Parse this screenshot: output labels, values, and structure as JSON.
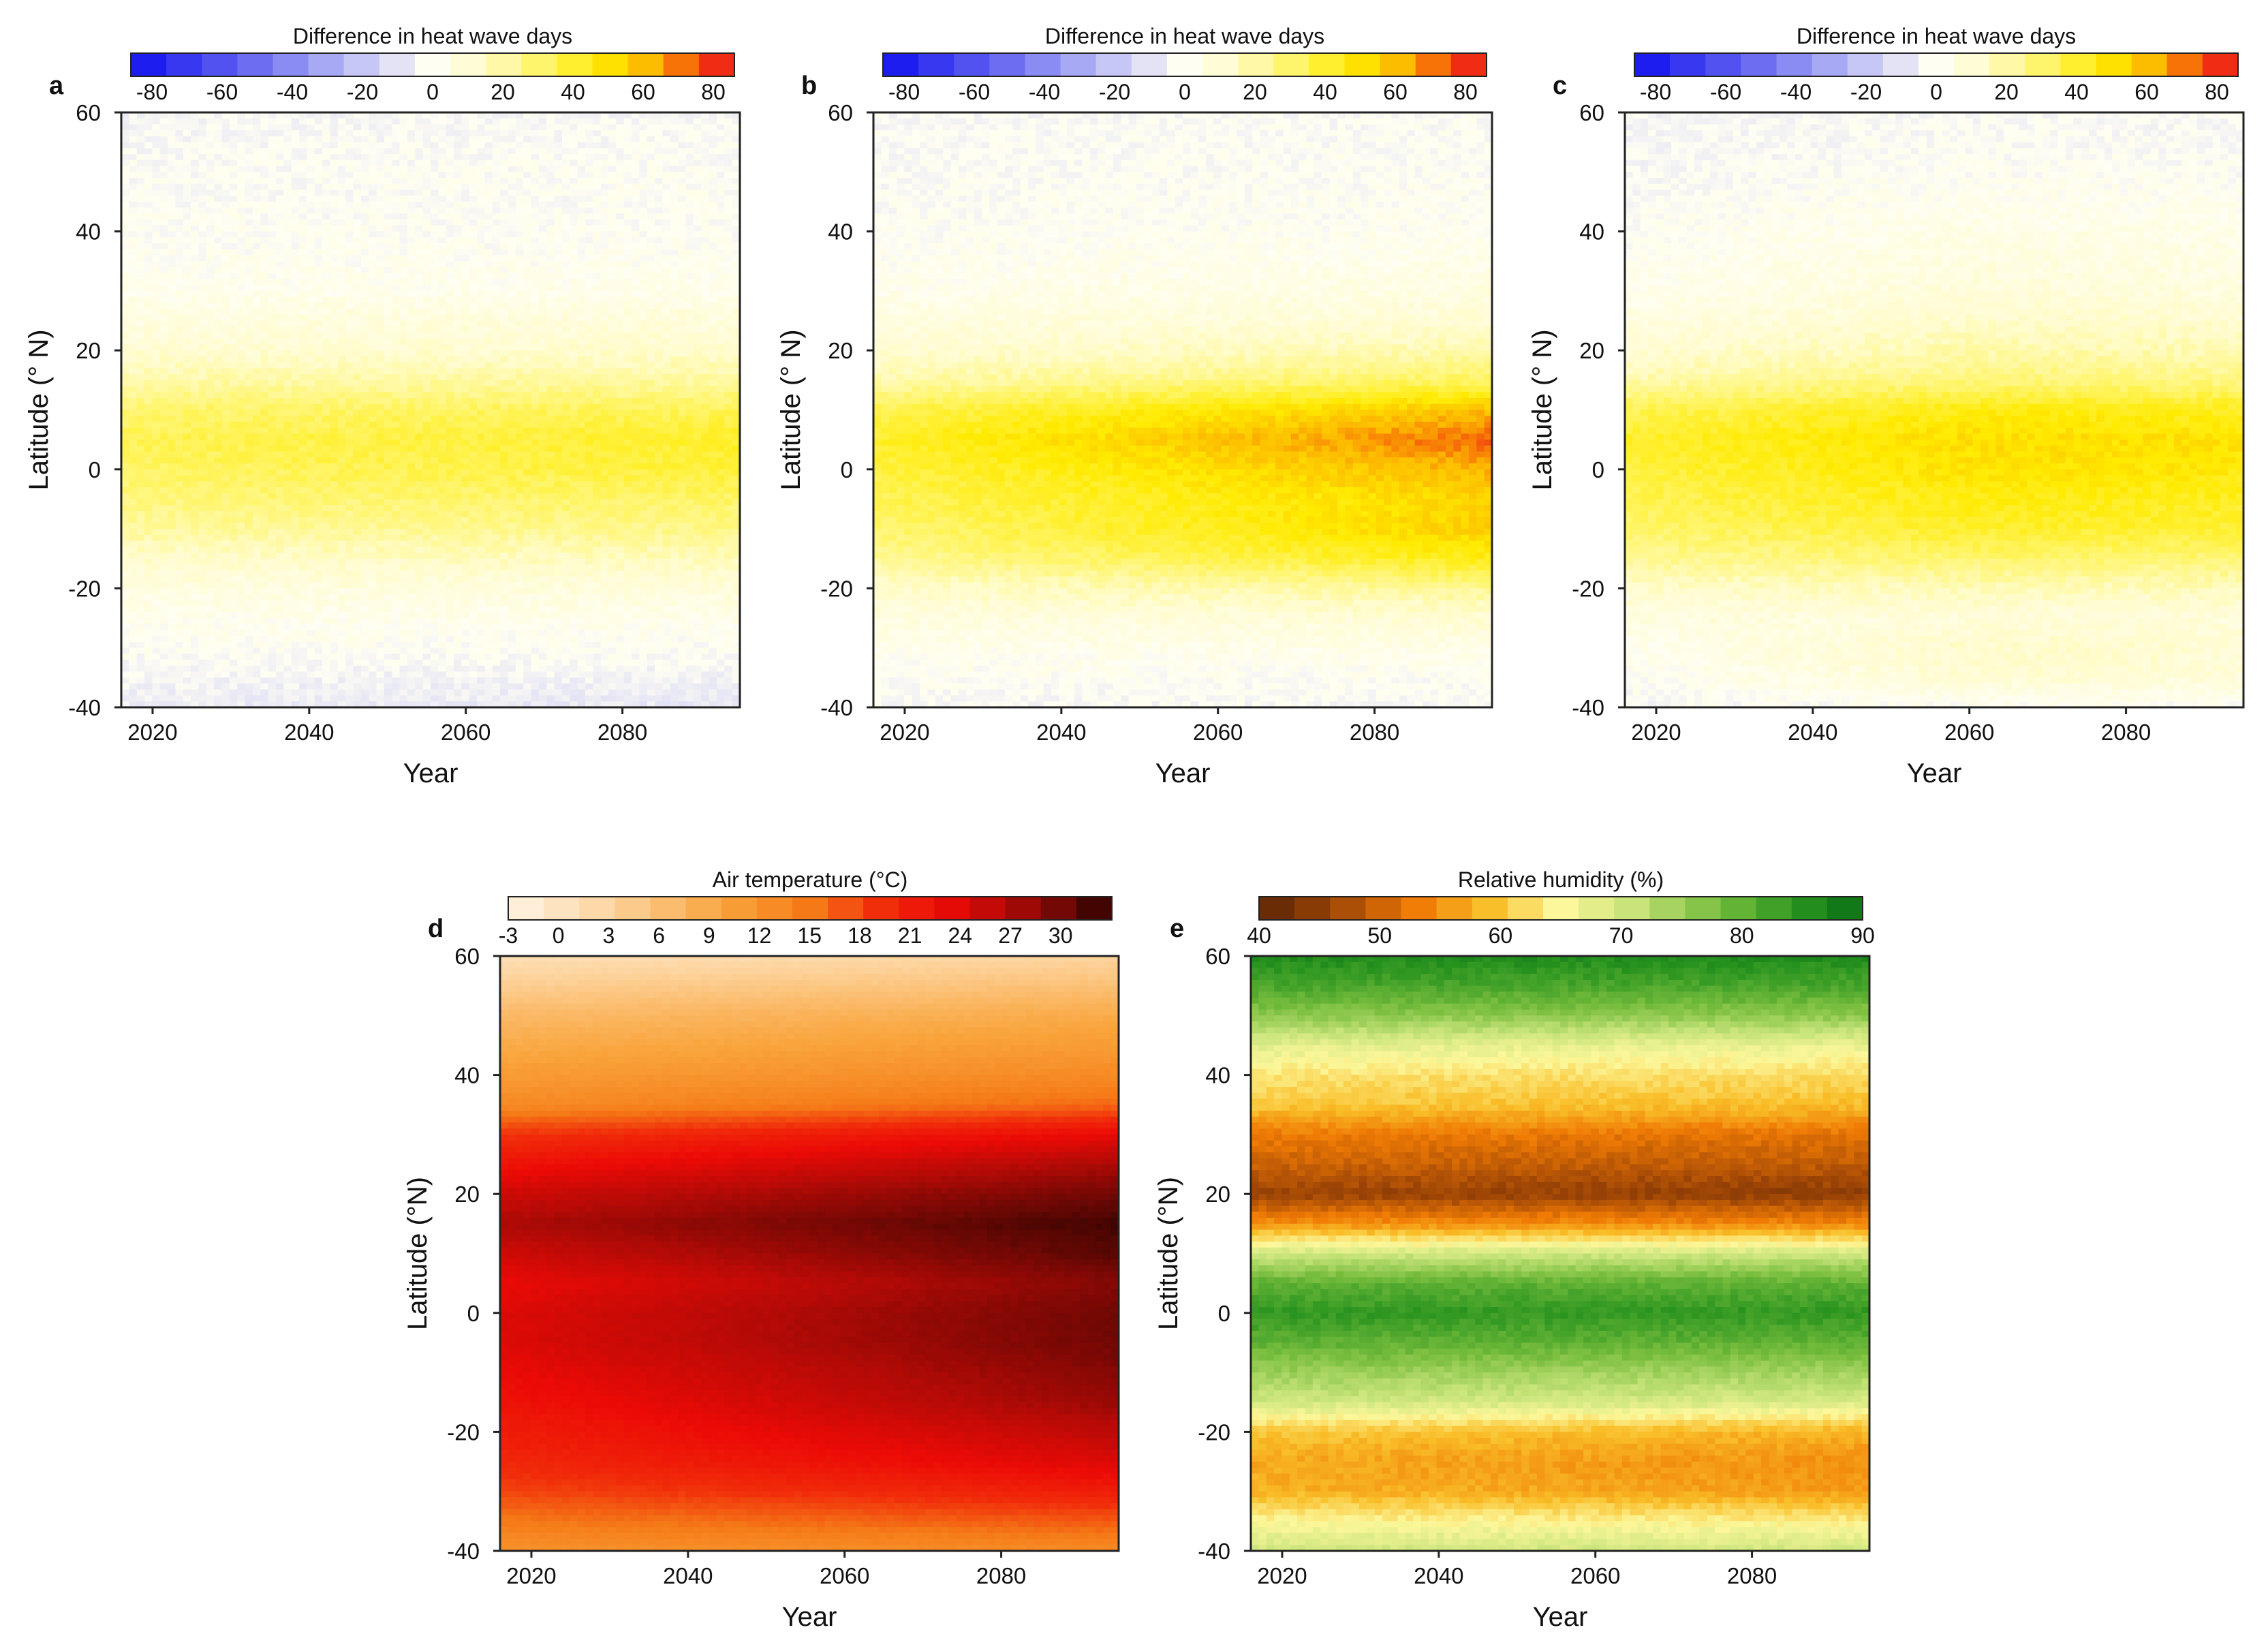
{
  "panels": [
    {
      "letter": "a",
      "variable": "hwd",
      "colorbar_title": "Difference in heat wave days",
      "colorbar_ticks": [
        "-80",
        "-60",
        "-40",
        "-20",
        "0",
        "20",
        "40",
        "60",
        "80"
      ],
      "xlabel": "Year",
      "ylabel": "Latitude (° N)"
    },
    {
      "letter": "b",
      "variable": "hwd",
      "colorbar_title": "Difference in heat wave days",
      "colorbar_ticks": [
        "-80",
        "-60",
        "-40",
        "-20",
        "0",
        "20",
        "40",
        "60",
        "80"
      ],
      "xlabel": "Year",
      "ylabel": "Latitude (° N)"
    },
    {
      "letter": "c",
      "variable": "hwd",
      "colorbar_title": "Difference in heat wave days",
      "colorbar_ticks": [
        "-80",
        "-60",
        "-40",
        "-20",
        "0",
        "20",
        "40",
        "60",
        "80"
      ],
      "xlabel": "Year",
      "ylabel": "Latitude (° N)"
    },
    {
      "letter": "d",
      "variable": "temp",
      "colorbar_title": "Air temperature (°C)",
      "colorbar_ticks": [
        "-3",
        "0",
        "3",
        "6",
        "9",
        "12",
        "15",
        "18",
        "21",
        "24",
        "27",
        "30"
      ],
      "xlabel": "Year",
      "ylabel": "Latitude (°N)"
    },
    {
      "letter": "e",
      "variable": "rh",
      "colorbar_title": "Relative humidity (%)",
      "colorbar_ticks": [
        "40",
        "50",
        "60",
        "70",
        "80",
        "90"
      ],
      "xlabel": "Year",
      "ylabel": "Latitude (°N)"
    }
  ],
  "chart_data": [
    {
      "panel": "a",
      "type": "heatmap",
      "colorbar_title": "Difference in heat wave days",
      "colorbar_range": [
        -80,
        80
      ],
      "xlabel": "Year",
      "ylabel": "Latitude (° N)",
      "xlim": [
        2016,
        2095
      ],
      "ylim": [
        -40,
        60
      ],
      "x_ticks": [
        2020,
        2040,
        2060,
        2080
      ],
      "y_ticks": [
        -40,
        -20,
        0,
        20,
        40,
        60
      ],
      "latitude_profile": {
        "lat": [
          -40,
          -35,
          -30,
          -25,
          -20,
          -15,
          -10,
          -5,
          0,
          5,
          10,
          15,
          20,
          25,
          30,
          40,
          50,
          60
        ],
        "value_start": [
          -6,
          -3,
          0,
          2,
          6,
          12,
          20,
          26,
          30,
          32,
          28,
          18,
          10,
          6,
          2,
          0,
          -1,
          -3
        ],
        "value_end": [
          -8,
          -4,
          0,
          3,
          8,
          16,
          24,
          30,
          36,
          38,
          32,
          20,
          12,
          8,
          3,
          0,
          0,
          -2
        ]
      }
    },
    {
      "panel": "b",
      "type": "heatmap",
      "colorbar_title": "Difference in heat wave days",
      "colorbar_range": [
        -80,
        80
      ],
      "xlabel": "Year",
      "ylabel": "Latitude (° N)",
      "xlim": [
        2016,
        2095
      ],
      "ylim": [
        -40,
        60
      ],
      "x_ticks": [
        2020,
        2040,
        2060,
        2080
      ],
      "y_ticks": [
        -40,
        -20,
        0,
        20,
        40,
        60
      ],
      "latitude_profile": {
        "lat": [
          -40,
          -35,
          -30,
          -25,
          -20,
          -15,
          -10,
          -5,
          0,
          5,
          10,
          15,
          20,
          25,
          30,
          40,
          50,
          60
        ],
        "value_start": [
          -2,
          0,
          2,
          6,
          12,
          22,
          28,
          32,
          35,
          38,
          32,
          18,
          10,
          6,
          2,
          0,
          -1,
          -2
        ],
        "value_end": [
          -2,
          0,
          4,
          10,
          22,
          42,
          52,
          50,
          58,
          68,
          55,
          30,
          18,
          10,
          6,
          1,
          0,
          -1
        ]
      }
    },
    {
      "panel": "c",
      "type": "heatmap",
      "colorbar_title": "Difference in heat wave days",
      "colorbar_range": [
        -80,
        80
      ],
      "xlabel": "Year",
      "ylabel": "Latitude (° N)",
      "xlim": [
        2016,
        2095
      ],
      "ylim": [
        -40,
        60
      ],
      "x_ticks": [
        2020,
        2040,
        2060,
        2080
      ],
      "y_ticks": [
        -40,
        -20,
        0,
        20,
        40,
        60
      ],
      "latitude_profile": {
        "lat": [
          -40,
          -35,
          -30,
          -25,
          -20,
          -15,
          -10,
          -5,
          0,
          5,
          10,
          15,
          20,
          25,
          30,
          40,
          50,
          60
        ],
        "value_start": [
          -2,
          0,
          2,
          6,
          12,
          22,
          28,
          32,
          35,
          38,
          32,
          18,
          10,
          6,
          2,
          0,
          -2,
          -3
        ],
        "value_end": [
          0,
          10,
          12,
          8,
          16,
          28,
          38,
          42,
          46,
          48,
          42,
          26,
          18,
          12,
          8,
          4,
          0,
          -2
        ]
      }
    },
    {
      "panel": "d",
      "type": "heatmap",
      "colorbar_title": "Air temperature (°C)",
      "colorbar_range": [
        -3,
        33
      ],
      "xlabel": "Year",
      "ylabel": "Latitude (°N)",
      "xlim": [
        2016,
        2095
      ],
      "ylim": [
        -40,
        60
      ],
      "x_ticks": [
        2020,
        2040,
        2060,
        2080
      ],
      "y_ticks": [
        -40,
        -20,
        0,
        20,
        40,
        60
      ],
      "latitude_profile": {
        "lat": [
          -40,
          -35,
          -30,
          -25,
          -20,
          -15,
          -10,
          -5,
          0,
          5,
          10,
          15,
          20,
          25,
          30,
          35,
          40,
          45,
          50,
          55,
          60
        ],
        "value_start": [
          12,
          15,
          18,
          20,
          21,
          22,
          23,
          24,
          24,
          23,
          25,
          27,
          25,
          22,
          19,
          13,
          11,
          9,
          7,
          4,
          1
        ],
        "value_end": [
          13,
          17,
          21,
          24,
          26,
          28,
          29,
          30,
          30,
          29,
          31,
          32,
          30,
          27,
          23,
          16,
          13,
          11,
          9,
          6,
          3
        ]
      }
    },
    {
      "panel": "e",
      "type": "heatmap",
      "colorbar_title": "Relative humidity (%)",
      "colorbar_range": [
        40,
        90
      ],
      "xlabel": "Year",
      "ylabel": "Latitude (°N)",
      "xlim": [
        2016,
        2095
      ],
      "ylim": [
        -40,
        60
      ],
      "x_ticks": [
        2020,
        2040,
        2060,
        2080
      ],
      "y_ticks": [
        -40,
        -20,
        0,
        20,
        40,
        60
      ],
      "latitude_profile": {
        "lat": [
          -40,
          -35,
          -30,
          -25,
          -20,
          -15,
          -10,
          -5,
          0,
          5,
          10,
          15,
          20,
          25,
          30,
          35,
          40,
          45,
          50,
          55,
          60
        ],
        "value_start": [
          70,
          65,
          58,
          57,
          60,
          70,
          75,
          80,
          84,
          80,
          70,
          55,
          46,
          50,
          53,
          60,
          63,
          68,
          76,
          82,
          86
        ],
        "value_end": [
          70,
          64,
          56,
          55,
          58,
          69,
          74,
          80,
          84,
          80,
          70,
          54,
          45,
          49,
          52,
          59,
          62,
          67,
          76,
          82,
          86
        ]
      }
    }
  ]
}
